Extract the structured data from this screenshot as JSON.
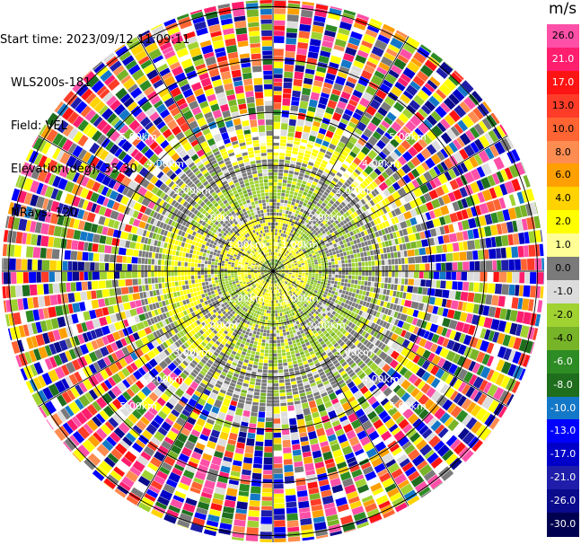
{
  "header": {
    "start_time": "Start time: 2023/09/12 11:09:11",
    "instrument": "WLS200s-181",
    "field": "Field: VEL",
    "elevation": "Elevation(deg): 35.30",
    "nrays": "NRays: 120"
  },
  "colorbar": {
    "unit": "m/s",
    "labels": [
      "26.0",
      "21.0",
      "17.0",
      "13.0",
      "10.0",
      "8.0",
      "6.0",
      "4.0",
      "2.0",
      "1.0",
      "0.0",
      "-1.0",
      "-2.0",
      "-4.0",
      "-6.0",
      "-8.0",
      "-10.0",
      "-13.0",
      "-17.0",
      "-21.0",
      "-26.0",
      "-30.0"
    ],
    "colors": [
      "#ff50a8",
      "#ff1e6e",
      "#ff1414",
      "#ff3c28",
      "#ff6432",
      "#ff8c50",
      "#ffa000",
      "#ffd200",
      "#ffff00",
      "#ffff96",
      "#7a7a7a",
      "#dcdcdc",
      "#a0d232",
      "#78b428",
      "#2d8c23",
      "#1e6e1e",
      "#1478c8",
      "#0000ff",
      "#0000c8",
      "#1e1eaa",
      "#0a0a8c",
      "#000050"
    ],
    "label_text_colors": [
      "#000",
      "#fff",
      "#fff",
      "#000",
      "#000",
      "#000",
      "#000",
      "#000",
      "#000",
      "#000",
      "#000",
      "#000",
      "#000",
      "#000",
      "#fff",
      "#fff",
      "#fff",
      "#fff",
      "#fff",
      "#fff",
      "#fff",
      "#fff"
    ]
  },
  "range_labels": {
    "ring1": "1.00km",
    "ring2": "2.00km",
    "ring3": "3.00km",
    "ring4": "4.00km",
    "ring5": "5.00km"
  },
  "noise_palette": [
    "#ff1e6e",
    "#ff50a8",
    "#ff1414",
    "#ff3c28",
    "#ff6432",
    "#ff8c50",
    "#ffa000",
    "#ffd200",
    "#ffff00",
    "#a0d232",
    "#78b428",
    "#2d8c23",
    "#1e6e1e",
    "#1478c8",
    "#0000ff",
    "#0000c8",
    "#1e1eaa",
    "#0a0a8c",
    "#7a7a7a",
    "#dcdcdc",
    "#ffffff",
    "#ff50a8",
    "#0000ff",
    "#ffff00"
  ]
}
